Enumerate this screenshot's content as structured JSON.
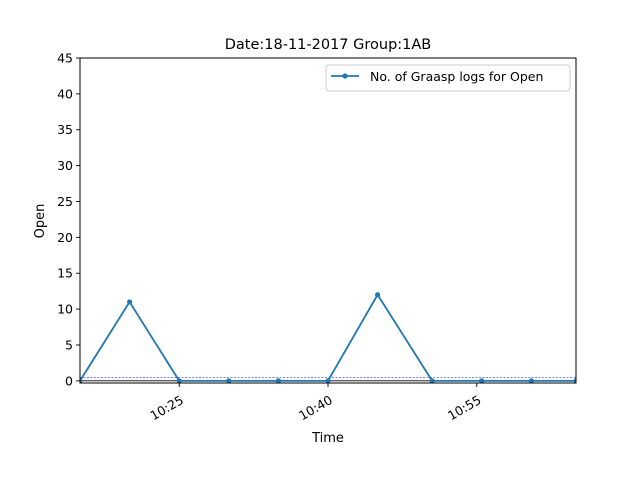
{
  "chart_data": {
    "type": "line",
    "title": "Date:18-11-2017  Group:1AB",
    "xlabel": "Time",
    "ylabel": "Open",
    "x_ticks": [
      {
        "label": "10:25",
        "minute": 25
      },
      {
        "label": "10:40",
        "minute": 40
      },
      {
        "label": "10:55",
        "minute": 55
      }
    ],
    "y_ticks": [
      0,
      5,
      10,
      15,
      20,
      25,
      30,
      35,
      40,
      45
    ],
    "ylim": [
      -0.3,
      45
    ],
    "xlim_minutes": [
      15,
      65
    ],
    "legend_position": "top-right",
    "grid": false,
    "series": [
      {
        "name": "No. of Graasp logs for Open",
        "color": "#1f77b4",
        "points": [
          {
            "minute": 15,
            "value": 0
          },
          {
            "minute": 20,
            "value": 11
          },
          {
            "minute": 25,
            "value": 0
          },
          {
            "minute": 30,
            "value": 0
          },
          {
            "minute": 35,
            "value": 0
          },
          {
            "minute": 40,
            "value": 0
          },
          {
            "minute": 45,
            "value": 12
          },
          {
            "minute": 50.5,
            "value": 0
          },
          {
            "minute": 55.5,
            "value": 0
          },
          {
            "minute": 60.5,
            "value": 0
          },
          {
            "minute": 65,
            "value": 0
          }
        ]
      }
    ],
    "reference_lines": [
      {
        "value": 0.5,
        "color": "#0000ff",
        "style": "dashed"
      },
      {
        "value": 0,
        "color": "#000000",
        "style": "solid"
      }
    ]
  }
}
